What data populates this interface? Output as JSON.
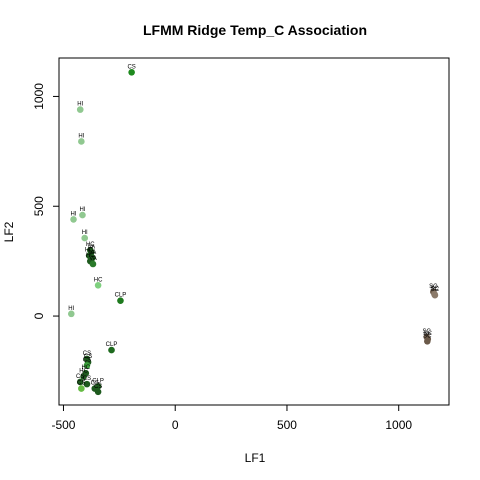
{
  "chart_data": {
    "type": "scatter",
    "title": "LFMM Ridge Temp_C Association",
    "xlabel": "LF1",
    "ylabel": "LF2",
    "xlim": [
      -520,
      1225
    ],
    "ylim": [
      -405,
      1175
    ],
    "x_ticks": [
      -500,
      0,
      500,
      1000
    ],
    "x_tick_labels": [
      "-500",
      "0",
      "500",
      "1000"
    ],
    "y_ticks": [
      0,
      500,
      1000
    ],
    "y_tick_labels": [
      "0",
      "500",
      "1000"
    ],
    "grid": false,
    "legend": "none",
    "points": [
      {
        "x": -195,
        "y": 1110,
        "label": "CS",
        "color": "#1e8a1e"
      },
      {
        "x": -425,
        "y": 940,
        "label": "HI",
        "color": "#90c890"
      },
      {
        "x": -420,
        "y": 795,
        "label": "HI",
        "color": "#90c890"
      },
      {
        "x": -455,
        "y": 440,
        "label": "HI",
        "color": "#90c890"
      },
      {
        "x": -415,
        "y": 460,
        "label": "HI",
        "color": "#90c890"
      },
      {
        "x": -405,
        "y": 355,
        "label": "HI",
        "color": "#90c890"
      },
      {
        "x": -380,
        "y": 300,
        "label": "HC",
        "color": "#1e5a1e"
      },
      {
        "x": -375,
        "y": 290,
        "label": "VA",
        "color": "#1e5a1e"
      },
      {
        "x": -385,
        "y": 275,
        "label": "HC",
        "color": "#1e5a1e"
      },
      {
        "x": -370,
        "y": 265,
        "label": "VA",
        "color": "#1e5a1e"
      },
      {
        "x": -380,
        "y": 250,
        "label": "HC",
        "color": "#1e5a1e"
      },
      {
        "x": -368,
        "y": 237,
        "label": "VA",
        "color": "#2a7a2a"
      },
      {
        "x": -345,
        "y": 140,
        "label": "HC",
        "color": "#7fd07f"
      },
      {
        "x": -245,
        "y": 70,
        "label": "CLP",
        "color": "#1e7a1e"
      },
      {
        "x": -465,
        "y": 10,
        "label": "HI",
        "color": "#90c890"
      },
      {
        "x": -285,
        "y": -155,
        "label": "CLP",
        "color": "#1e6a1e"
      },
      {
        "x": -395,
        "y": -195,
        "label": "CS",
        "color": "#1e5a1e"
      },
      {
        "x": -390,
        "y": -210,
        "label": "CS",
        "color": "#1e5a1e"
      },
      {
        "x": -395,
        "y": -225,
        "label": "CS",
        "color": "#3aa03a"
      },
      {
        "x": -400,
        "y": -260,
        "label": "HC",
        "color": "#1e5a1e"
      },
      {
        "x": -410,
        "y": -275,
        "label": "HC",
        "color": "#1e5a1e"
      },
      {
        "x": -425,
        "y": -300,
        "label": "CS",
        "color": "#1e5a1e"
      },
      {
        "x": -395,
        "y": -310,
        "label": "CS",
        "color": "#1e5a1e"
      },
      {
        "x": -345,
        "y": -320,
        "label": "CLP",
        "color": "#1e5a1e"
      },
      {
        "x": -420,
        "y": -330,
        "label": "CS",
        "color": "#66bb44"
      },
      {
        "x": -360,
        "y": -330,
        "label": "CS",
        "color": "#1e5a1e"
      },
      {
        "x": -345,
        "y": -345,
        "label": "CS",
        "color": "#1e5a1e"
      },
      {
        "x": 1155,
        "y": 110,
        "label": "SC",
        "color": "#6b5a4a"
      },
      {
        "x": 1160,
        "y": 100,
        "label": "SC",
        "color": "#8b7a6a"
      },
      {
        "x": 1162,
        "y": 95,
        "label": "SC",
        "color": "#8b7a6a"
      },
      {
        "x": 1125,
        "y": -95,
        "label": "SC",
        "color": "#6b5a4a"
      },
      {
        "x": 1130,
        "y": -105,
        "label": "SC",
        "color": "#6b5a4a"
      },
      {
        "x": 1128,
        "y": -115,
        "label": "SC",
        "color": "#6b5a4a"
      }
    ]
  }
}
